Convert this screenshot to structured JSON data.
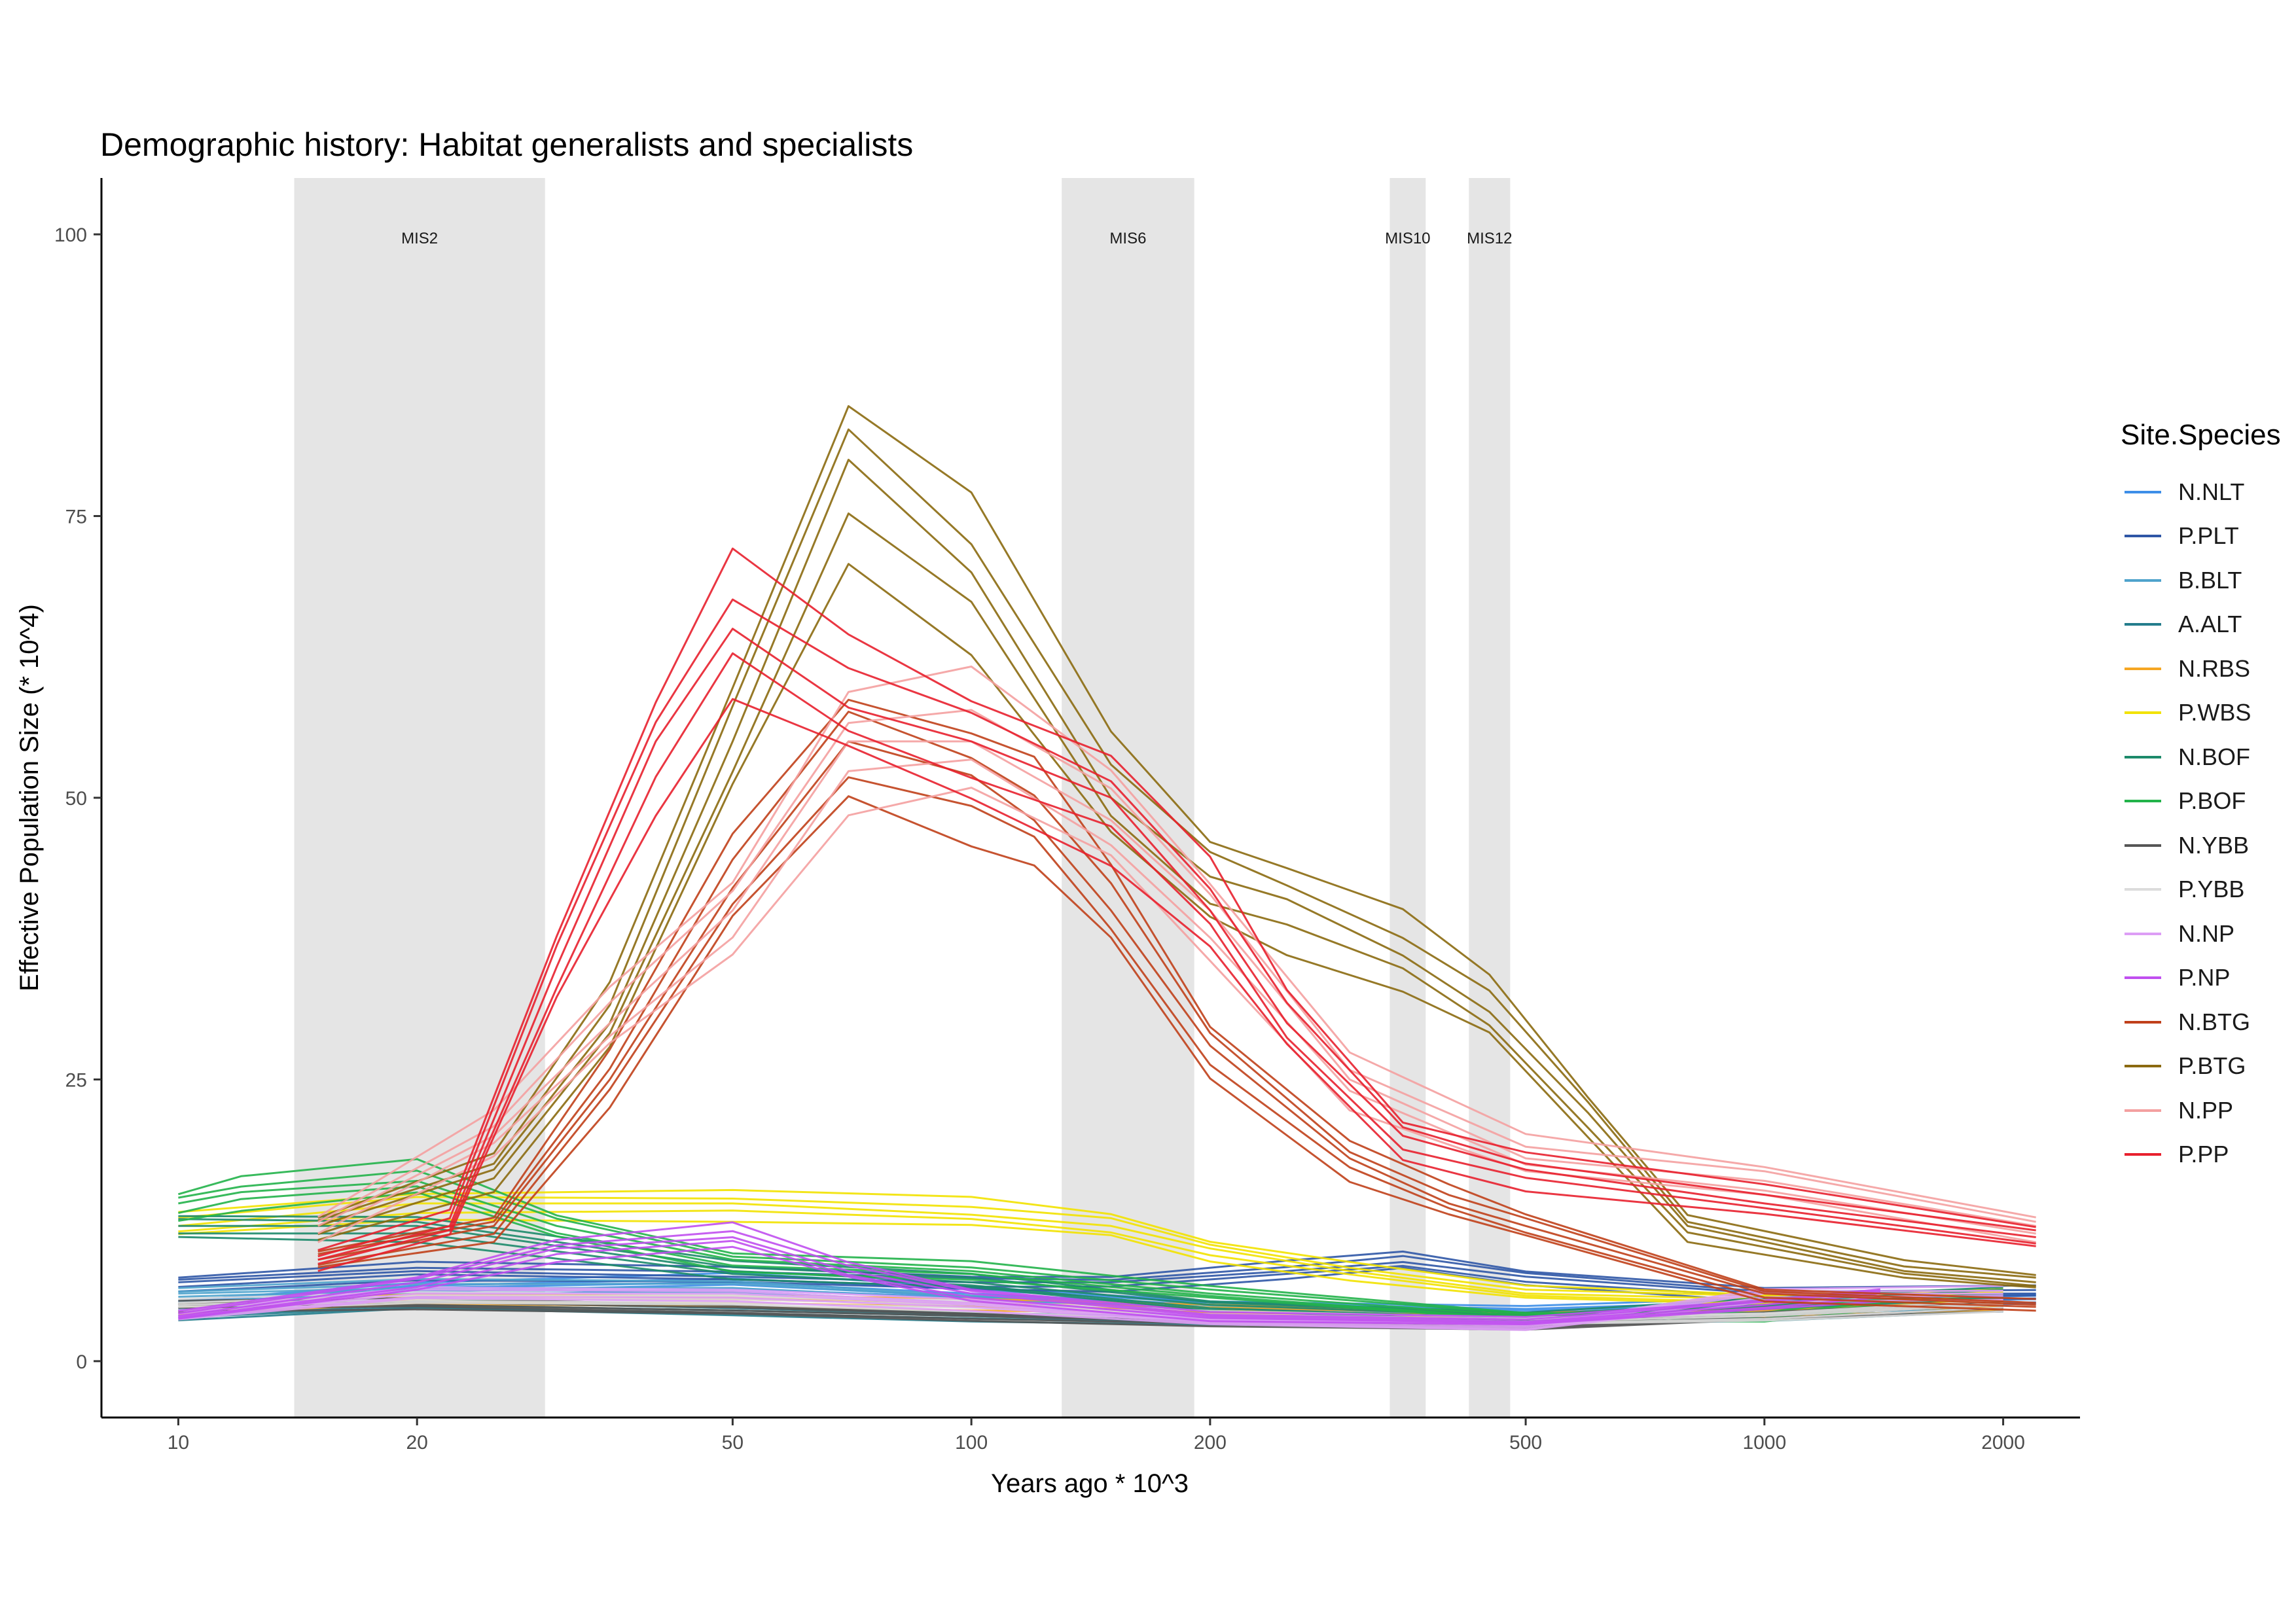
{
  "chart_data": {
    "type": "line",
    "title": "Demographic history: Habitat generalists and specialists",
    "xlabel": "Years ago * 10^3",
    "ylabel": "Effective Population Size (* 10^4)",
    "x_scale": "log10",
    "xlim": [
      8,
      2500
    ],
    "ylim": [
      -5,
      105
    ],
    "x_ticks": [
      10,
      20,
      50,
      100,
      200,
      500,
      1000,
      2000
    ],
    "x_tick_labels": [
      "10",
      "20",
      "50",
      "100",
      "200",
      "500",
      "1000",
      "2000"
    ],
    "y_ticks": [
      0,
      25,
      50,
      75,
      100
    ],
    "y_tick_labels": [
      "0",
      "25",
      "50",
      "75",
      "100"
    ],
    "grid": false,
    "shaded_periods": [
      {
        "label": "MIS2",
        "start": 14,
        "end": 29
      },
      {
        "label": "MIS6",
        "start": 130,
        "end": 191
      },
      {
        "label": "MIS10",
        "start": 337,
        "end": 374
      },
      {
        "label": "MIS12",
        "start": 424,
        "end": 478
      }
    ],
    "legend_title": "Site.Species",
    "legend_position": "right",
    "series": [
      {
        "name": "N.NLT",
        "color": "#3d8ee8",
        "points": [
          [
            10,
            5
          ],
          [
            20,
            6.5
          ],
          [
            50,
            7
          ],
          [
            100,
            6
          ],
          [
            200,
            5
          ],
          [
            500,
            4.5
          ],
          [
            1000,
            5
          ],
          [
            2200,
            5.5
          ]
        ]
      },
      {
        "name": "P.PLT",
        "color": "#2f56a6",
        "points": [
          [
            10,
            7
          ],
          [
            20,
            8
          ],
          [
            50,
            7.5
          ],
          [
            100,
            7
          ],
          [
            150,
            7
          ],
          [
            250,
            8
          ],
          [
            350,
            8.8
          ],
          [
            500,
            7.5
          ],
          [
            1000,
            6
          ],
          [
            2200,
            6
          ]
        ]
      },
      {
        "name": "B.BLT",
        "color": "#4fa3cc",
        "points": [
          [
            10,
            6
          ],
          [
            20,
            6.5
          ],
          [
            50,
            6.5
          ],
          [
            100,
            5.5
          ],
          [
            200,
            4.5
          ],
          [
            500,
            3.5
          ],
          [
            1000,
            4.5
          ],
          [
            2000,
            5
          ]
        ]
      },
      {
        "name": "A.ALT",
        "color": "#247d8c",
        "points": [
          [
            10,
            4
          ],
          [
            20,
            5
          ],
          [
            50,
            4.5
          ],
          [
            100,
            4
          ],
          [
            200,
            3.5
          ],
          [
            500,
            3.5
          ],
          [
            1000,
            4
          ],
          [
            2000,
            5
          ]
        ]
      },
      {
        "name": "N.RBS",
        "color": "#f5a623",
        "points": [
          [
            10,
            4.5
          ],
          [
            20,
            5.5
          ],
          [
            50,
            5.5
          ],
          [
            100,
            5
          ],
          [
            200,
            4.5
          ],
          [
            500,
            4
          ],
          [
            1000,
            4.5
          ],
          [
            2000,
            5
          ]
        ]
      },
      {
        "name": "P.WBS",
        "color": "#f2e200",
        "points": [
          [
            10,
            12
          ],
          [
            20,
            14
          ],
          [
            50,
            14
          ],
          [
            100,
            13
          ],
          [
            150,
            12
          ],
          [
            200,
            10
          ],
          [
            300,
            8
          ],
          [
            500,
            6
          ],
          [
            1000,
            5.5
          ],
          [
            2000,
            6
          ]
        ]
      },
      {
        "name": "N.BOF",
        "color": "#1c8a6a",
        "points": [
          [
            10,
            12
          ],
          [
            20,
            12
          ],
          [
            50,
            8
          ],
          [
            100,
            7
          ],
          [
            200,
            5
          ],
          [
            500,
            4
          ],
          [
            1000,
            5
          ],
          [
            2000,
            6
          ]
        ]
      },
      {
        "name": "P.BOF",
        "color": "#22b34a",
        "points": [
          [
            10,
            14
          ],
          [
            12,
            15
          ],
          [
            20,
            16
          ],
          [
            30,
            12
          ],
          [
            50,
            9
          ],
          [
            100,
            8
          ],
          [
            200,
            6
          ],
          [
            500,
            4
          ],
          [
            1000,
            4
          ],
          [
            1400,
            5
          ]
        ]
      },
      {
        "name": "N.YBB",
        "color": "#555555",
        "points": [
          [
            10,
            5
          ],
          [
            20,
            5
          ],
          [
            50,
            4.5
          ],
          [
            100,
            4
          ],
          [
            200,
            3.5
          ],
          [
            500,
            3
          ],
          [
            1000,
            4
          ],
          [
            2000,
            5
          ]
        ]
      },
      {
        "name": "P.YBB",
        "color": "#dcdcdc",
        "points": [
          [
            10,
            5
          ],
          [
            20,
            5.5
          ],
          [
            50,
            5.5
          ],
          [
            100,
            5
          ],
          [
            200,
            4
          ],
          [
            500,
            3.5
          ],
          [
            1000,
            4
          ],
          [
            2000,
            5
          ]
        ]
      },
      {
        "name": "N.NP",
        "color": "#dd9ef5",
        "points": [
          [
            10,
            4
          ],
          [
            20,
            6
          ],
          [
            50,
            6
          ],
          [
            100,
            5
          ],
          [
            200,
            3.5
          ],
          [
            500,
            3
          ],
          [
            1000,
            6
          ],
          [
            2000,
            6
          ]
        ]
      },
      {
        "name": "P.NP",
        "color": "#c04ff0",
        "points": [
          [
            10,
            4
          ],
          [
            20,
            7
          ],
          [
            30,
            10
          ],
          [
            50,
            11
          ],
          [
            70,
            8
          ],
          [
            100,
            6
          ],
          [
            200,
            4
          ],
          [
            500,
            3.5
          ],
          [
            1000,
            5
          ],
          [
            1400,
            6
          ]
        ]
      },
      {
        "name": "N.BTG",
        "color": "#c0401a",
        "points": [
          [
            15,
            9
          ],
          [
            25,
            12
          ],
          [
            35,
            25
          ],
          [
            50,
            42
          ],
          [
            70,
            55
          ],
          [
            100,
            52
          ],
          [
            120,
            48
          ],
          [
            150,
            40
          ],
          [
            200,
            28
          ],
          [
            300,
            18
          ],
          [
            400,
            14
          ],
          [
            500,
            12
          ],
          [
            1000,
            6
          ],
          [
            2200,
            5
          ]
        ]
      },
      {
        "name": "P.BTG",
        "color": "#8b6a10",
        "points": [
          [
            15,
            12
          ],
          [
            25,
            17
          ],
          [
            35,
            30
          ],
          [
            50,
            55
          ],
          [
            70,
            80
          ],
          [
            100,
            70
          ],
          [
            150,
            50
          ],
          [
            200,
            43
          ],
          [
            250,
            41
          ],
          [
            350,
            36
          ],
          [
            450,
            31
          ],
          [
            600,
            22
          ],
          [
            800,
            12
          ],
          [
            1500,
            8
          ],
          [
            2200,
            7
          ]
        ]
      },
      {
        "name": "N.PP",
        "color": "#f4a0a0",
        "points": [
          [
            15,
            12
          ],
          [
            25,
            20
          ],
          [
            35,
            30
          ],
          [
            50,
            40
          ],
          [
            70,
            55
          ],
          [
            100,
            55
          ],
          [
            150,
            48
          ],
          [
            200,
            40
          ],
          [
            300,
            25
          ],
          [
            500,
            18
          ],
          [
            1000,
            16
          ],
          [
            2200,
            12
          ]
        ]
      },
      {
        "name": "P.PP",
        "color": "#e8202e",
        "points": [
          [
            15,
            9
          ],
          [
            22,
            12
          ],
          [
            30,
            35
          ],
          [
            40,
            55
          ],
          [
            50,
            65
          ],
          [
            70,
            58
          ],
          [
            100,
            55
          ],
          [
            150,
            50
          ],
          [
            200,
            40
          ],
          [
            250,
            30
          ],
          [
            350,
            20
          ],
          [
            500,
            17
          ],
          [
            1000,
            14
          ],
          [
            2200,
            11
          ]
        ]
      }
    ]
  }
}
